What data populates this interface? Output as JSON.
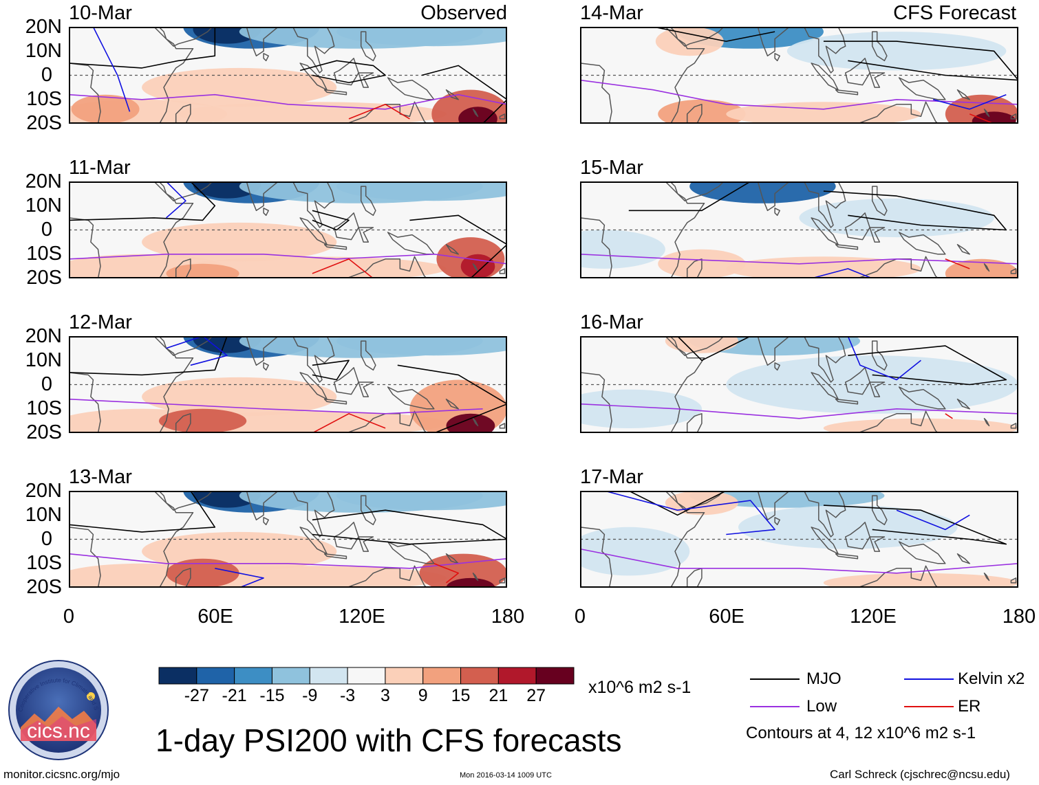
{
  "header": {
    "left_tag": "Observed",
    "right_tag": "CFS Forecast"
  },
  "panels": [
    {
      "date": "10-Mar"
    },
    {
      "date": "11-Mar"
    },
    {
      "date": "12-Mar"
    },
    {
      "date": "13-Mar"
    },
    {
      "date": "14-Mar"
    },
    {
      "date": "15-Mar"
    },
    {
      "date": "16-Mar"
    },
    {
      "date": "17-Mar"
    }
  ],
  "axes": {
    "lat_labels": [
      "20N",
      "10N",
      "0",
      "10S",
      "20S"
    ],
    "lon_labels": [
      "0",
      "60E",
      "120E",
      "180"
    ]
  },
  "colorbar": {
    "ticks": [
      "-27",
      "-21",
      "-15",
      "-9",
      "-3",
      "3",
      "9",
      "15",
      "21",
      "27"
    ],
    "colors": [
      "#0b2f63",
      "#1f63a8",
      "#3d8ec4",
      "#8fc2dd",
      "#d2e5f0",
      "#f7f7f7",
      "#fbd0b9",
      "#f2a17e",
      "#d35f4f",
      "#b1182b",
      "#67001f"
    ],
    "units": "x10^6 m2 s-1"
  },
  "legend": {
    "items": [
      {
        "label": "MJO",
        "color": "#000000"
      },
      {
        "label": "Kelvin x2",
        "color": "#1010e0"
      },
      {
        "label": "Low",
        "color": "#9a30e0"
      },
      {
        "label": "ER",
        "color": "#e01010"
      }
    ],
    "note": "Contours at 4, 12 x10^6 m2 s-1"
  },
  "logo": {
    "name": "cics.nc",
    "ring_text": "Cooperative Institute for Climate and Satellites"
  },
  "title": "1-day PSI200 with CFS forecasts",
  "footer": {
    "url": "monitor.cicsnc.org/mjo",
    "timestamp": "Mon 2016-03-14 1009 UTC",
    "author": "Carl Schreck (cjschrec@ncsu.edu)"
  }
}
